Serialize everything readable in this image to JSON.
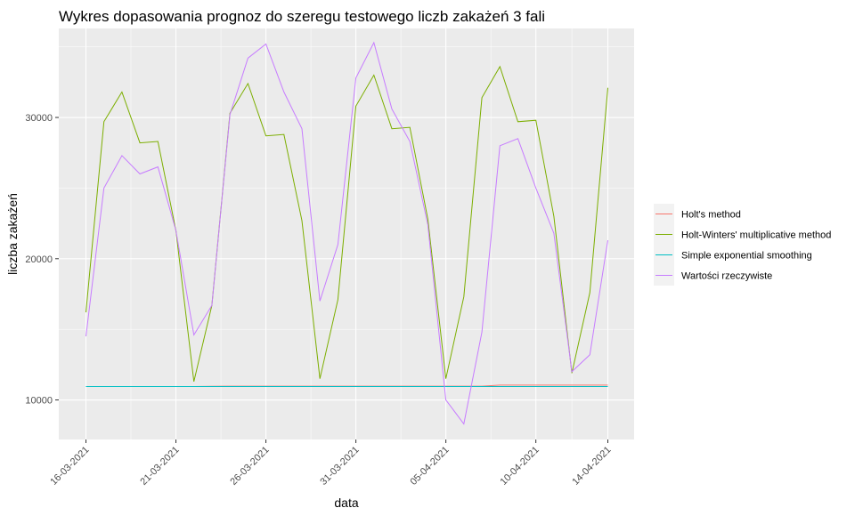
{
  "chart_data": {
    "type": "line",
    "title": "Wykres dopasowania prognoz do szeregu testowego liczb zakażeń 3 fali",
    "xlabel": "data",
    "ylabel": "liczba zakażeń",
    "x": [
      "16-03-2021",
      "17-03-2021",
      "18-03-2021",
      "19-03-2021",
      "20-03-2021",
      "21-03-2021",
      "22-03-2021",
      "23-03-2021",
      "24-03-2021",
      "25-03-2021",
      "26-03-2021",
      "27-03-2021",
      "28-03-2021",
      "29-03-2021",
      "30-03-2021",
      "31-03-2021",
      "01-04-2021",
      "02-04-2021",
      "03-04-2021",
      "04-04-2021",
      "05-04-2021",
      "06-04-2021",
      "07-04-2021",
      "08-04-2021",
      "09-04-2021",
      "10-04-2021",
      "11-04-2021",
      "12-04-2021",
      "13-04-2021",
      "14-04-2021"
    ],
    "x_ticks": [
      "16-03-2021",
      "21-03-2021",
      "26-03-2021",
      "31-03-2021",
      "05-04-2021",
      "10-04-2021",
      "14-04-2021"
    ],
    "y_ticks": [
      10000,
      20000,
      30000
    ],
    "ylim": [
      7200,
      36300
    ],
    "grid": true,
    "legend_position": "right",
    "series": [
      {
        "name": "Holt's method",
        "color": "#F8766D",
        "values": [
          10950,
          10950,
          10950,
          10950,
          10950,
          10950,
          10950,
          10960,
          10970,
          10970,
          10970,
          10970,
          10970,
          10970,
          10970,
          10970,
          10970,
          10970,
          10970,
          10970,
          10970,
          10970,
          10970,
          11050,
          11050,
          11050,
          11050,
          11050,
          11050,
          11050
        ]
      },
      {
        "name": "Holt-Winters' multiplicative method",
        "color": "#7CAE00",
        "values": [
          16200,
          29700,
          31800,
          28200,
          28300,
          22000,
          11300,
          16700,
          30300,
          32400,
          28700,
          28800,
          22700,
          11500,
          17100,
          30800,
          33000,
          29200,
          29300,
          22800,
          11500,
          17300,
          31400,
          33600,
          29700,
          29800,
          23000,
          11900,
          17600,
          32100
        ]
      },
      {
        "name": "Simple exponential smoothing",
        "color": "#00BFC4",
        "values": [
          10950,
          10950,
          10950,
          10950,
          10950,
          10950,
          10950,
          10950,
          10950,
          10950,
          10950,
          10950,
          10950,
          10950,
          10950,
          10950,
          10950,
          10950,
          10950,
          10950,
          10950,
          10950,
          10950,
          10950,
          10950,
          10950,
          10950,
          10950,
          10950,
          10950
        ]
      },
      {
        "name": "Wartości rzeczywiste",
        "color": "#C77CFF",
        "values": [
          14500,
          25000,
          27300,
          26000,
          26500,
          22000,
          14600,
          16700,
          30200,
          34200,
          35200,
          31800,
          29200,
          17000,
          21000,
          32800,
          35300,
          30600,
          28300,
          22400,
          10000,
          8300,
          14800,
          28000,
          28500,
          25000,
          21800,
          12000,
          13200,
          21300
        ]
      }
    ]
  }
}
